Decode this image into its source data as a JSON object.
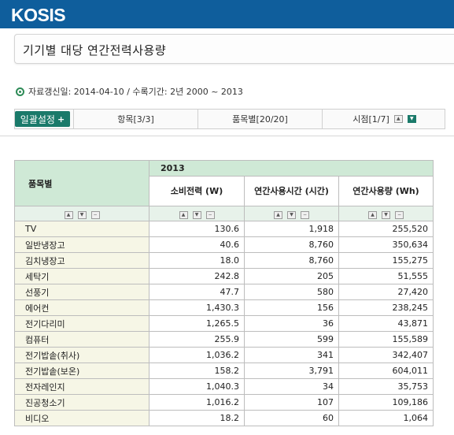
{
  "header": {
    "logo": "KOSIS"
  },
  "page_title": "기기별 대당 연간전력사용량",
  "info": {
    "text": "자료갱신일: 2014-04-10 / 수록기간: 2년 2000 ~ 2013"
  },
  "settings_bar": {
    "button_label": "일괄설정",
    "item_label": "항목[3/3]",
    "category_label": "품목별[20/20]",
    "period_label": "시점[1/7]"
  },
  "table": {
    "row_header": "품목별",
    "year": "2013",
    "columns": [
      "소비전력 (W)",
      "연간사용시간 (시간)",
      "연간사용량 (Wh)"
    ],
    "rows": [
      {
        "name": "TV",
        "power": "130.6",
        "hours": "1,918",
        "usage": "255,520"
      },
      {
        "name": "일반냉장고",
        "power": "40.6",
        "hours": "8,760",
        "usage": "350,634"
      },
      {
        "name": "김치냉장고",
        "power": "18.0",
        "hours": "8,760",
        "usage": "155,275"
      },
      {
        "name": "세탁기",
        "power": "242.8",
        "hours": "205",
        "usage": "51,555"
      },
      {
        "name": "선풍기",
        "power": "47.7",
        "hours": "580",
        "usage": "27,420"
      },
      {
        "name": "에어컨",
        "power": "1,430.3",
        "hours": "156",
        "usage": "238,245"
      },
      {
        "name": "전기다리미",
        "power": "1,265.5",
        "hours": "36",
        "usage": "43,871"
      },
      {
        "name": "컴퓨터",
        "power": "255.9",
        "hours": "599",
        "usage": "155,589"
      },
      {
        "name": "전기밥솥(취사)",
        "power": "1,036.2",
        "hours": "341",
        "usage": "342,407"
      },
      {
        "name": "전기밥솥(보온)",
        "power": "158.2",
        "hours": "3,791",
        "usage": "604,011"
      },
      {
        "name": "전자레인지",
        "power": "1,040.3",
        "hours": "34",
        "usage": "35,753"
      },
      {
        "name": "진공청소기",
        "power": "1,016.2",
        "hours": "107",
        "usage": "109,186"
      },
      {
        "name": "비디오",
        "power": "18.2",
        "hours": "60",
        "usage": "1,064"
      }
    ]
  }
}
